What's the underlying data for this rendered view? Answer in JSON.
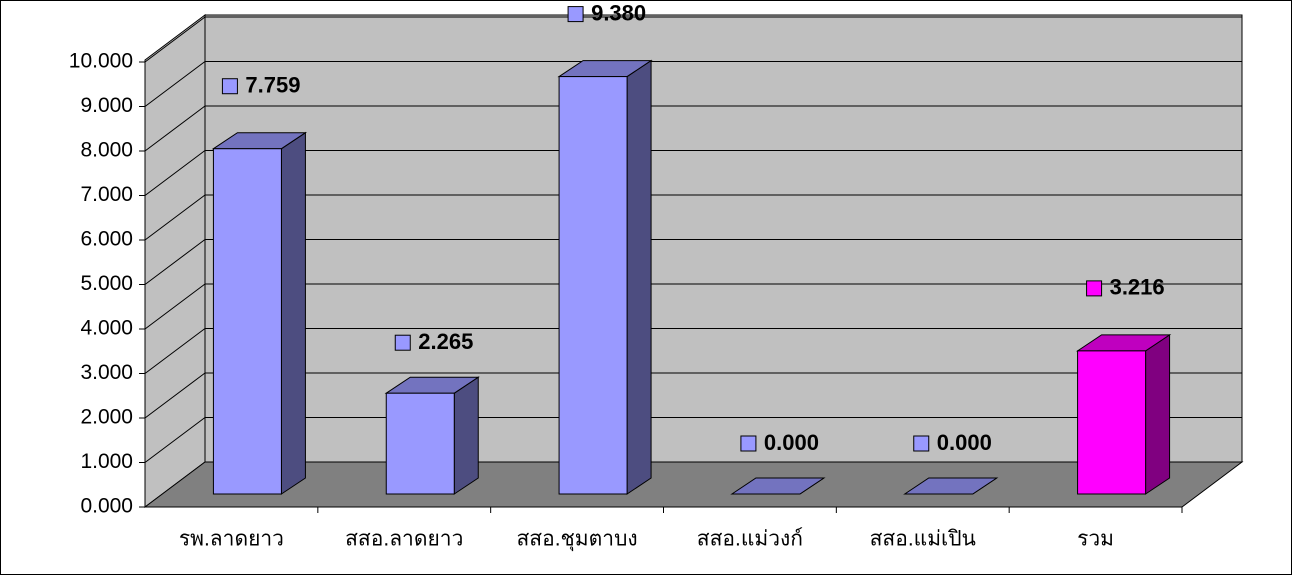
{
  "chart_data": {
    "type": "bar3d",
    "categories": [
      "รพ.ลาดยาว",
      "สสอ.ลาดยาว",
      "สสอ.ชุมตาบง",
      "สสอ.แม่วงก์",
      "สสอ.แม่เปิน",
      "รวม"
    ],
    "values": [
      7.759,
      2.265,
      9.38,
      0,
      0,
      3.216
    ],
    "value_labels": [
      "7.759",
      "2.265",
      "9.380",
      "0.000",
      "0.000",
      "3.216"
    ],
    "colors": [
      "#9999ff",
      "#9999ff",
      "#9999ff",
      "#9999ff",
      "#9999ff",
      "#ff00ff"
    ],
    "ylim": [
      0,
      10
    ],
    "yticks": [
      {
        "value": 0,
        "label": "0.000"
      },
      {
        "value": 1,
        "label": "1.000"
      },
      {
        "value": 2,
        "label": "2.000"
      },
      {
        "value": 3,
        "label": "3.000"
      },
      {
        "value": 4,
        "label": "4.000"
      },
      {
        "value": 5,
        "label": "5.000"
      },
      {
        "value": 6,
        "label": "6.000"
      },
      {
        "value": 7,
        "label": "7.000"
      },
      {
        "value": 8,
        "label": "8.000"
      },
      {
        "value": 9,
        "label": "9.000"
      },
      {
        "value": 10,
        "label": "10.000"
      }
    ],
    "grid": true
  }
}
